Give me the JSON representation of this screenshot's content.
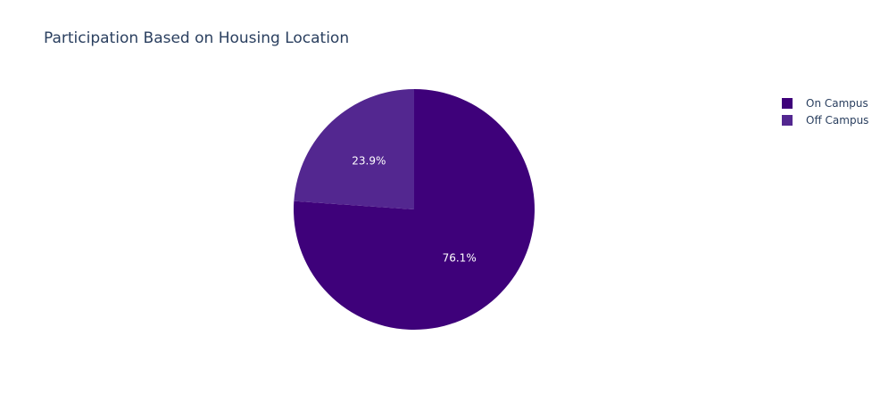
{
  "chart_data": {
    "type": "pie",
    "title": "Participation Based on Housing Location",
    "labels": [
      "On Campus",
      "Off Campus"
    ],
    "values": [
      76.1,
      23.9
    ],
    "text_labels": [
      "76.1%",
      "23.9%"
    ],
    "colors": [
      "#3e017a",
      "#532790"
    ],
    "legend_position": "top-right"
  }
}
